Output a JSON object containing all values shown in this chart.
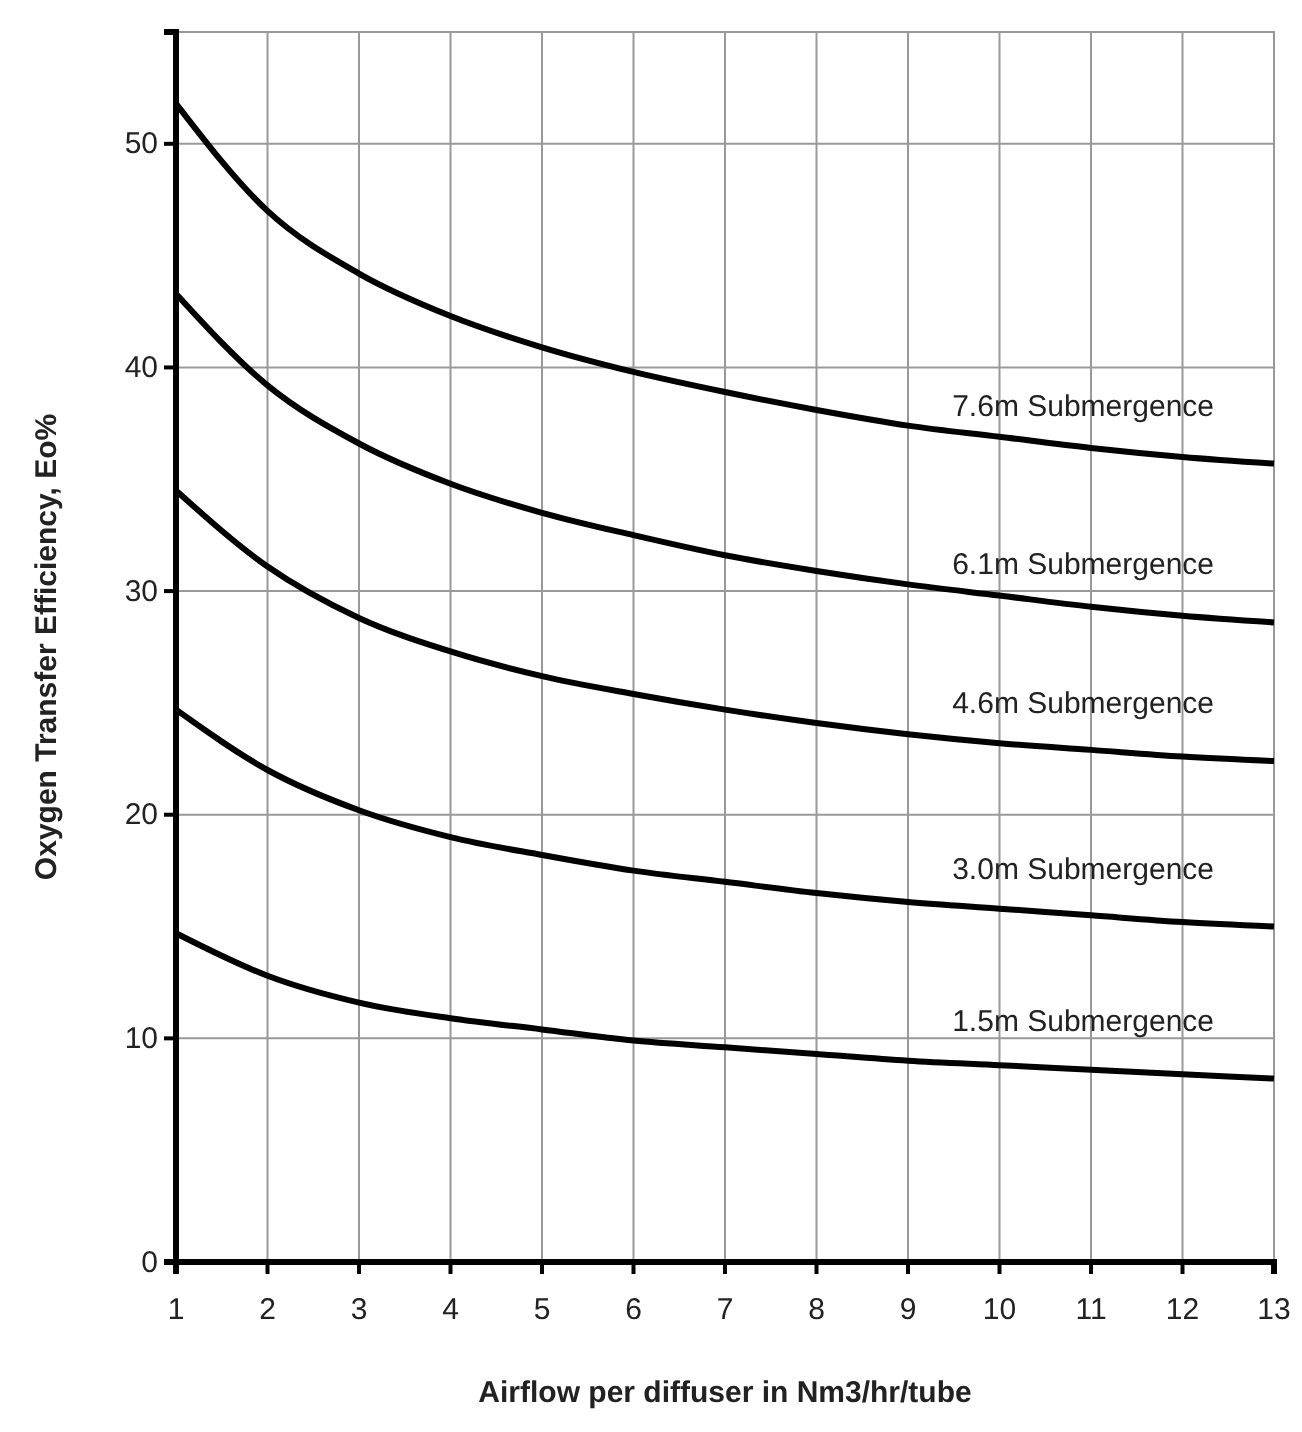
{
  "chart_data": {
    "type": "line",
    "xlabel": "Airflow per diffuser in Nm3/hr/tube",
    "ylabel": "Oxygen Transfer Efficiency, Eo%",
    "x": [
      1,
      2,
      3,
      4,
      5,
      6,
      7,
      8,
      9,
      10,
      11,
      12,
      13
    ],
    "xlim": [
      1,
      13
    ],
    "xticks": [
      1,
      2,
      3,
      4,
      5,
      6,
      7,
      8,
      9,
      10,
      11,
      12,
      13
    ],
    "ylim": [
      0,
      55
    ],
    "yticks": [
      0,
      10,
      20,
      30,
      40,
      50
    ],
    "grid": true,
    "legend": false,
    "marker": "none",
    "line_style": "solid",
    "series": [
      {
        "name": "7.6m Submergence",
        "color": "#000000",
        "values": [
          51.8,
          47,
          44.2,
          42.3,
          40.9,
          39.8,
          38.9,
          38.1,
          37.4,
          36.9,
          36.4,
          36,
          35.7
        ]
      },
      {
        "name": "6.1m Submergence",
        "color": "#000000",
        "values": [
          43.3,
          39.2,
          36.6,
          34.8,
          33.5,
          32.5,
          31.6,
          30.9,
          30.3,
          29.8,
          29.3,
          28.9,
          28.6
        ]
      },
      {
        "name": "4.6m Submergence",
        "color": "#000000",
        "values": [
          34.5,
          31.1,
          28.8,
          27.3,
          26.2,
          25.4,
          24.7,
          24.1,
          23.6,
          23.2,
          22.9,
          22.6,
          22.4
        ]
      },
      {
        "name": "3.0m Submergence",
        "color": "#000000",
        "values": [
          24.7,
          22,
          20.2,
          19,
          18.2,
          17.5,
          17,
          16.5,
          16.1,
          15.8,
          15.5,
          15.2,
          15
        ]
      },
      {
        "name": "1.5m Submergence",
        "color": "#000000",
        "values": [
          14.7,
          12.8,
          11.6,
          10.9,
          10.4,
          9.9,
          9.6,
          9.3,
          9,
          8.8,
          8.6,
          8.4,
          8.2
        ]
      }
    ]
  }
}
